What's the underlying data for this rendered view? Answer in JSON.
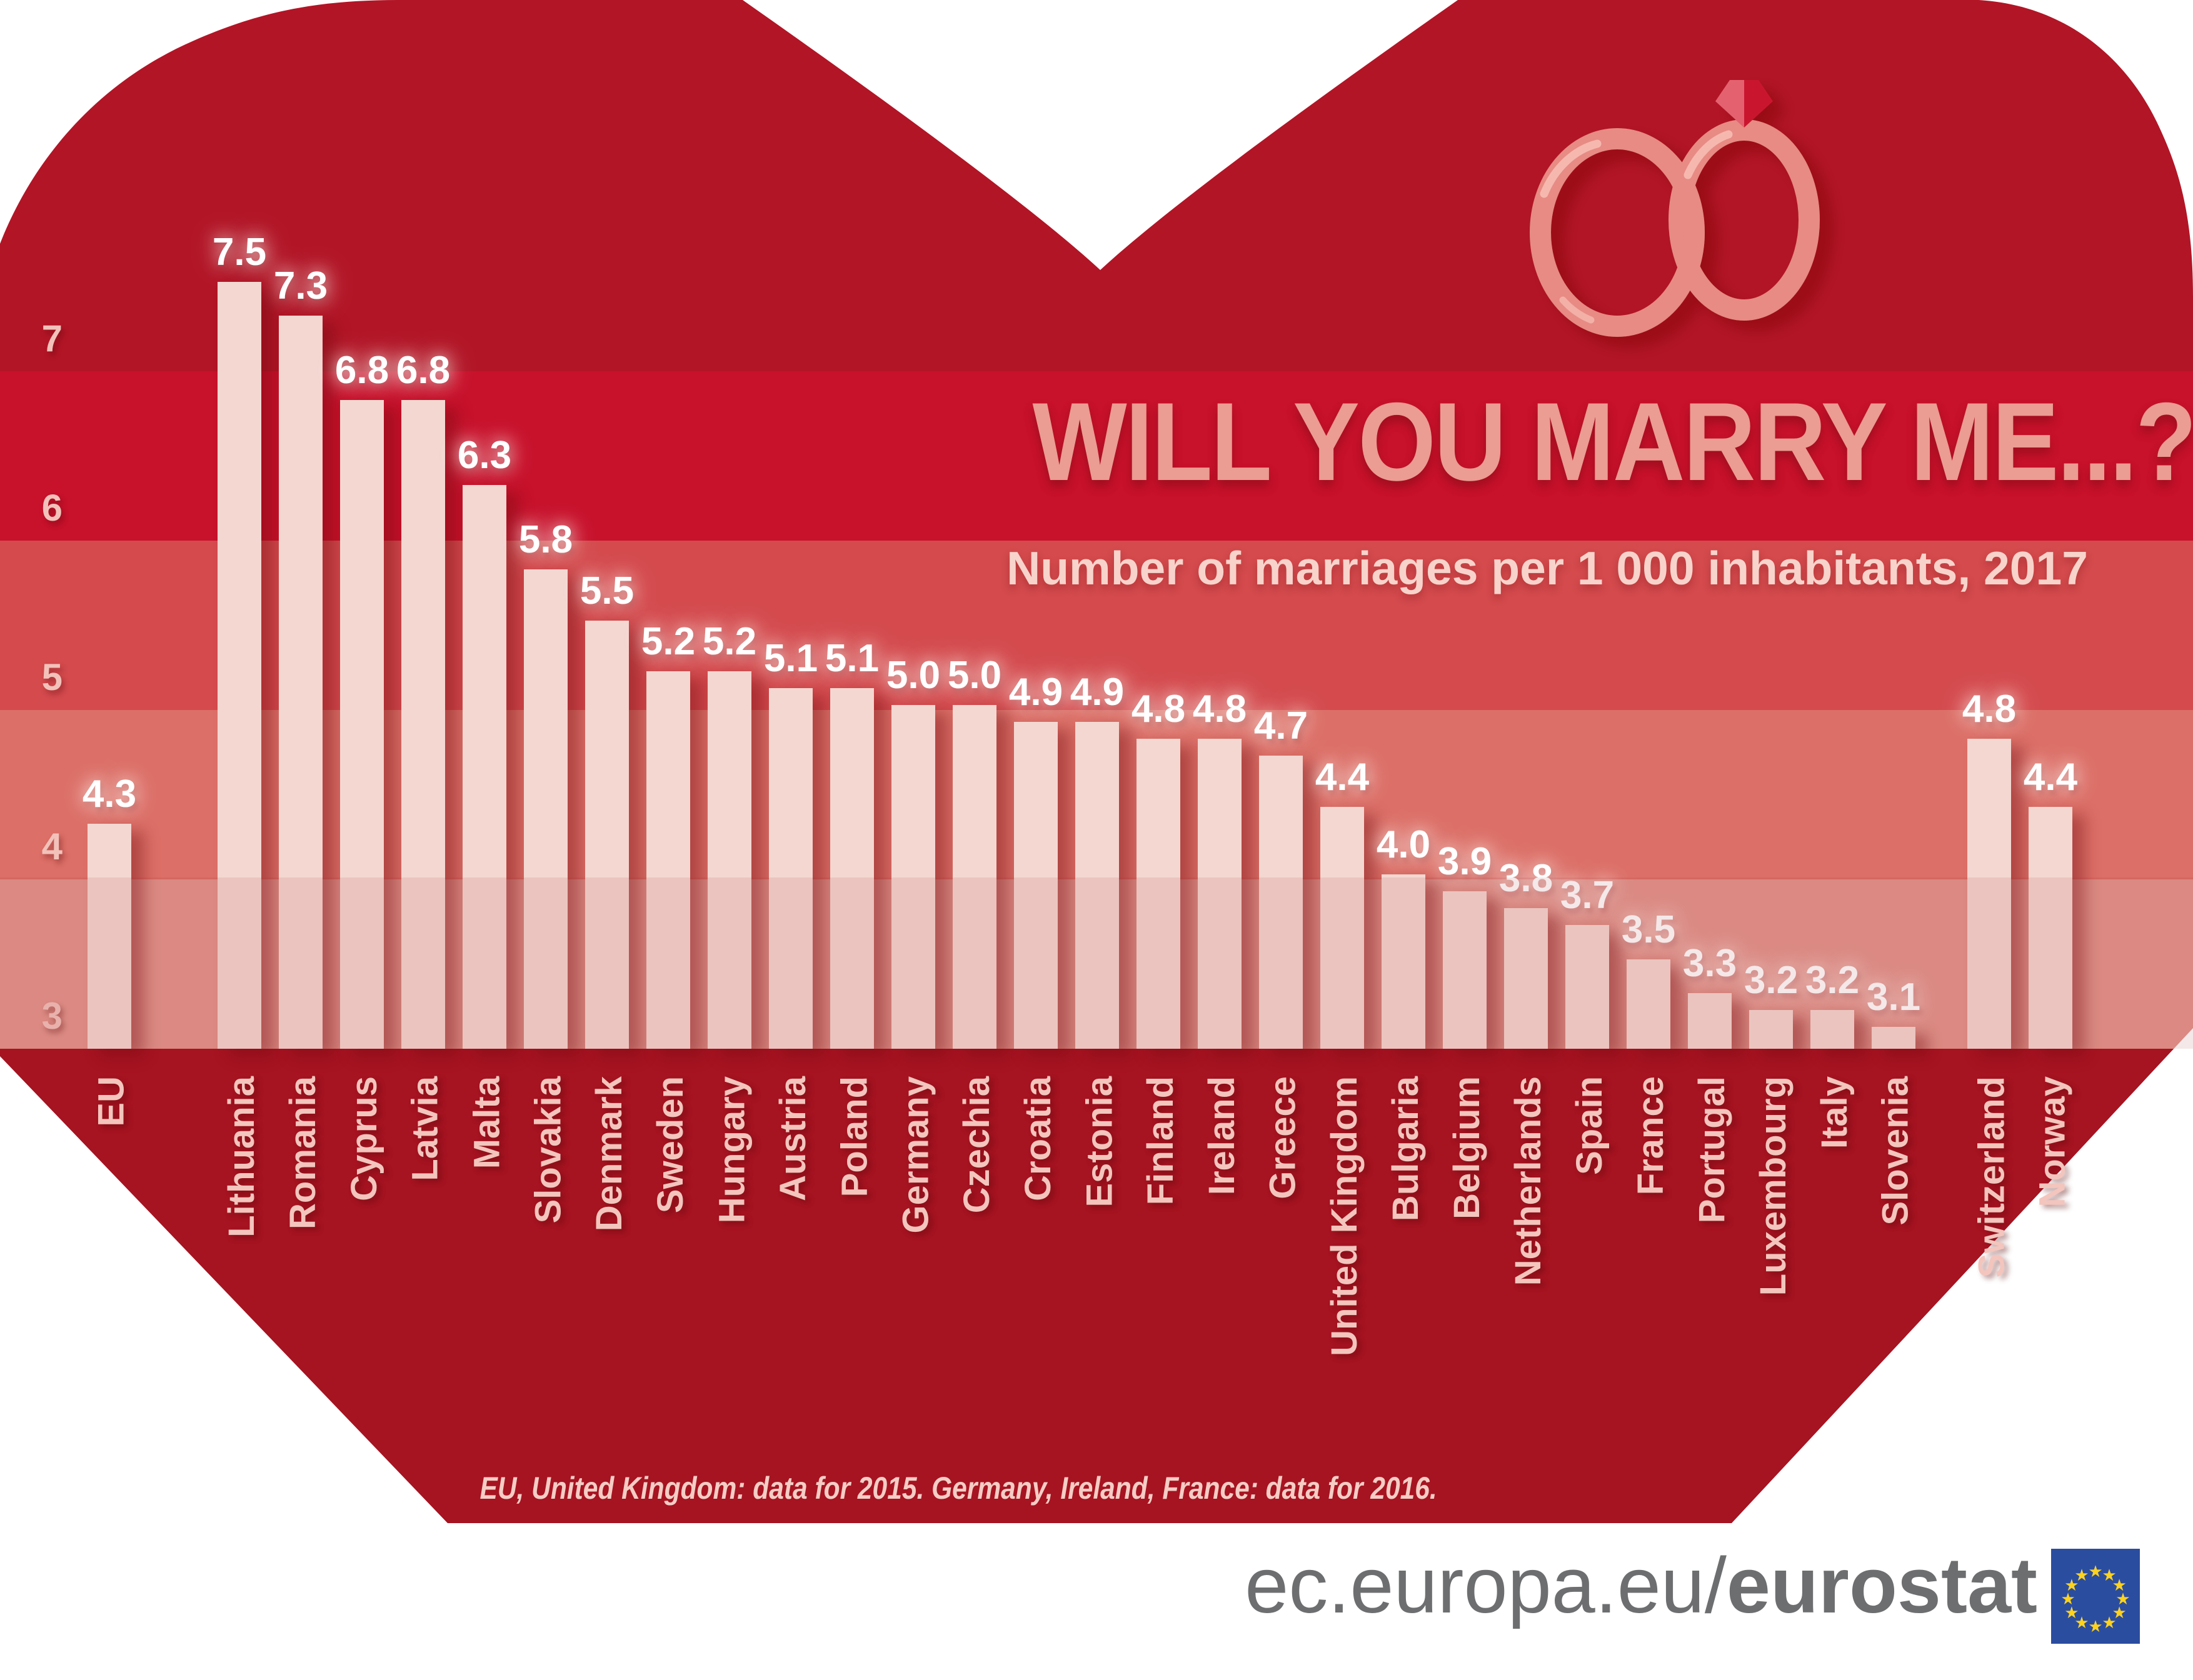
{
  "title": "WILL YOU MARRY ME...?",
  "subtitle": "Number of marriages per 1 000 inhabitants, 2017",
  "footnote": "EU, United Kingdom: data for 2015.  Germany, Ireland, France: data for 2016.",
  "logo": {
    "url_prefix": "ec.europa.eu/",
    "url_bold": "eurostat",
    "flag": {
      "stars": 12
    }
  },
  "y_axis": {
    "ticks": [
      {
        "label": "7",
        "value": 7
      },
      {
        "label": "6",
        "value": 6
      },
      {
        "label": "5",
        "value": 5
      },
      {
        "label": "4",
        "value": 4
      },
      {
        "label": "3",
        "value": 3
      }
    ]
  },
  "icons": [
    "wedding-rings-icon",
    "diamond-icon",
    "eu-flag-icon"
  ],
  "chart_data": {
    "type": "bar",
    "title": "WILL YOU MARRY ME...?",
    "subtitle": "Number of marriages per 1 000 inhabitants, 2017",
    "unit": "marriages per 1 000 inhabitants",
    "year": 2017,
    "categories": [
      "EU",
      "Lithuania",
      "Romania",
      "Cyprus",
      "Latvia",
      "Malta",
      "Slovakia",
      "Denmark",
      "Sweden",
      "Hungary",
      "Austria",
      "Poland",
      "Germany",
      "Czechia",
      "Croatia",
      "Estonia",
      "Finland",
      "Ireland",
      "Greece",
      "United Kingdom",
      "Bulgaria",
      "Belgium",
      "Netherlands",
      "Spain",
      "France",
      "Portugal",
      "Luxembourg",
      "Italy",
      "Slovenia",
      "Switzerland",
      "Norway"
    ],
    "values": [
      4.3,
      7.5,
      7.3,
      6.8,
      6.8,
      6.3,
      5.8,
      5.5,
      5.2,
      5.2,
      5.1,
      5.1,
      5.0,
      5.0,
      4.9,
      4.9,
      4.8,
      4.8,
      4.7,
      4.4,
      4.0,
      3.9,
      3.8,
      3.7,
      3.5,
      3.3,
      3.2,
      3.2,
      3.1,
      4.8,
      4.4
    ],
    "value_labels": [
      "4.3",
      "7.5",
      "7.3",
      "6.8",
      "6.8",
      "6.3",
      "5.8",
      "5.5",
      "5.2",
      "5.2",
      "5.1",
      "5.1",
      "5.0",
      "5.0",
      "4.9",
      "4.9",
      "4.8",
      "4.8",
      "4.7",
      "4.4",
      "4.0",
      "3.9",
      "3.8",
      "3.7",
      "3.5",
      "3.3",
      "3.2",
      "3.2",
      "3.1",
      "4.8",
      "4.4"
    ],
    "ylim": [
      3,
      7.9
    ],
    "yticks": [
      3,
      4,
      5,
      6,
      7
    ],
    "grid": "horizontal shaded value bands",
    "legend": "none",
    "separated_groups": {
      "aggregate": "EU",
      "efta": [
        "Switzerland",
        "Norway"
      ]
    },
    "notes": "EU, United Kingdom: data for 2015.  Germany, Ireland, France: data for 2016."
  },
  "colors": {
    "heart_top": "#B21526",
    "band_6_7": "#C8112B",
    "band_5_6": "#D44A4D",
    "band_4_5": "#DC6F67",
    "band_3_4": "#E2968D",
    "heart_bottom": "#A61321",
    "bar": "#F4D7D1",
    "tint_overlay": "rgba(155,25,35,0.10)",
    "value_label": "#FFFFFF",
    "axis_label": "#F2C2BA",
    "country_label": "#F3C5BD",
    "title": "#EB9C93",
    "subtitle": "#F8D3CB",
    "footnote": "#F5CDC5",
    "logo_text": "#6D6E70",
    "flag_blue": "#2B4DA0",
    "star_yellow": "#FFD21E",
    "rings": "#E78B84",
    "ring_highlight": "#F7BCB3",
    "diamond_dark": "#C9152F",
    "diamond_light": "#E4626F"
  }
}
